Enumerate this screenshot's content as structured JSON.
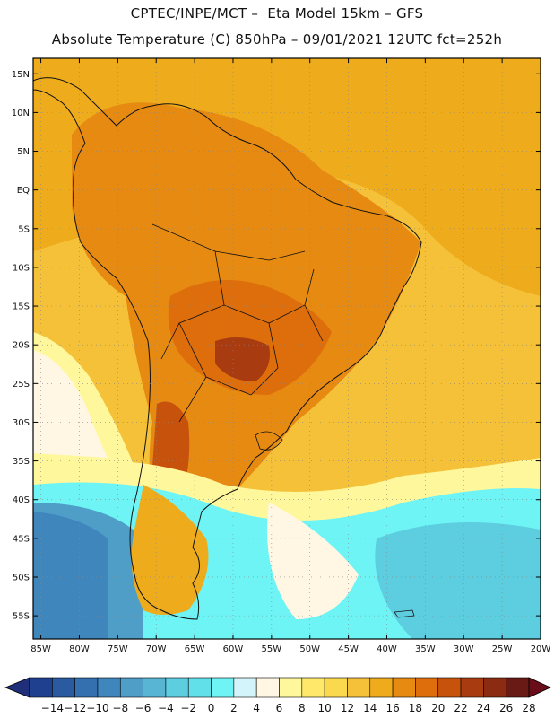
{
  "header": {
    "line1": "CPTEC/INPE/MCT –  Eta Model 15km – GFS",
    "line2": "Absolute Temperature (C) 850hPa – 09/01/2021 12UTC fct=252h"
  },
  "map": {
    "lat_labels": [
      "15N",
      "10N",
      "5N",
      "EQ",
      "5S",
      "10S",
      "15S",
      "20S",
      "25S",
      "30S",
      "35S",
      "40S",
      "45S",
      "50S",
      "55S"
    ],
    "lon_labels": [
      "85W",
      "80W",
      "75W",
      "70W",
      "65W",
      "60W",
      "55W",
      "50W",
      "45W",
      "40W",
      "35W",
      "30W",
      "25W",
      "20W"
    ],
    "lon_range": [
      -86,
      -20
    ],
    "lat_range": [
      -58,
      17
    ]
  },
  "colorbar": {
    "labels": [
      "-14",
      "-12",
      "-10",
      "-8",
      "-6",
      "-4",
      "-2",
      "0",
      "2",
      "4",
      "6",
      "8",
      "10",
      "12",
      "14",
      "16",
      "18",
      "20",
      "22",
      "24",
      "26",
      "28"
    ],
    "colors": [
      "#1f3f8f",
      "#2a5aa0",
      "#3470b0",
      "#3f86bd",
      "#4e9ec8",
      "#58b5d4",
      "#5dcde0",
      "#62e0ea",
      "#6ff4f6",
      "#d4f4fb",
      "#fff7e4",
      "#fff79b",
      "#ffe86a",
      "#fbd94f",
      "#f4c139",
      "#eeac1d",
      "#e68a12",
      "#de6e0c",
      "#c7520c",
      "#a83b10",
      "#8a2b12",
      "#6a1a14"
    ],
    "low_end": "#1f2f7a",
    "high_end": "#6a0d1a"
  }
}
